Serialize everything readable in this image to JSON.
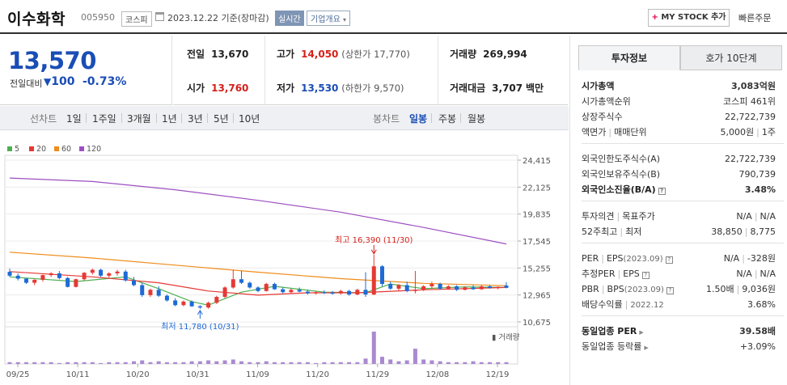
{
  "header": {
    "stock_name": "이수화학",
    "stock_code": "005950",
    "market": "코스피",
    "date_basis": "2023.12.22 기준(장마감)",
    "realtime_label": "실시간",
    "company_info_label": "기업개요",
    "mystock_label": "MY STOCK 추가",
    "quick_order_label": "빠른주문"
  },
  "price": {
    "current": "13,570",
    "diff_label": "전일대비",
    "diff_value": "100",
    "diff_pct": "-0.73%",
    "color": "#1a4db5"
  },
  "info": {
    "prev_label": "전일",
    "prev_value": "13,670",
    "high_label": "고가",
    "high_value": "14,050",
    "upper_limit": "(상한가 17,770)",
    "volume_label": "거래량",
    "volume_value": "269,994",
    "open_label": "시가",
    "open_value": "13,760",
    "low_label": "저가",
    "low_value": "13,530",
    "lower_limit": "(하한가 9,570)",
    "amount_label": "거래대금",
    "amount_value": "3,707",
    "amount_unit": "백만"
  },
  "toolbar": {
    "line_chart": "선차트",
    "periods": [
      "1일",
      "1주일",
      "3개월",
      "1년",
      "3년",
      "5년",
      "10년"
    ],
    "candle_chart": "봉차트",
    "candle_periods": [
      "일봉",
      "주봉",
      "월봉"
    ],
    "selected": "일봉"
  },
  "chart_data": {
    "type": "candlestick",
    "legend": [
      "5",
      "20",
      "60",
      "120"
    ],
    "legend_colors": [
      "#4caf50",
      "#e53935",
      "#ef8c1c",
      "#9c4fc0"
    ],
    "y_ticks": [
      "24,415",
      "22,125",
      "19,835",
      "17,545",
      "15,255",
      "12,965",
      "10,675"
    ],
    "x_ticks": [
      "09/25",
      "10/11",
      "10/20",
      "10/31",
      "11/09",
      "11/20",
      "11/29",
      "12/08",
      "12/19"
    ],
    "ylim": [
      10675,
      24415
    ],
    "max_annotation": "최고 16,390 (11/30)",
    "min_annotation": "최저 11,780 (10/31)",
    "volume_label": "거래량",
    "candles": [
      [
        14930,
        15200,
        14500,
        14600
      ],
      [
        14600,
        14800,
        14200,
        14350
      ],
      [
        14350,
        14400,
        13900,
        14000
      ],
      [
        14000,
        14300,
        13800,
        14250
      ],
      [
        14250,
        14700,
        14100,
        14650
      ],
      [
        14650,
        14900,
        14500,
        14800
      ],
      [
        14800,
        15000,
        14300,
        14400
      ],
      [
        14400,
        14500,
        13600,
        13650
      ],
      [
        13650,
        14350,
        13600,
        14300
      ],
      [
        14300,
        14900,
        14200,
        14850
      ],
      [
        14850,
        15200,
        14700,
        15100
      ],
      [
        15100,
        15200,
        14500,
        14600
      ],
      [
        14600,
        14900,
        14400,
        14800
      ],
      [
        14800,
        15100,
        14600,
        14950
      ],
      [
        14950,
        15100,
        14100,
        14200
      ],
      [
        14200,
        14500,
        13700,
        13800
      ],
      [
        13800,
        14000,
        12800,
        12950
      ],
      [
        12950,
        13500,
        12800,
        13400
      ],
      [
        13400,
        13700,
        12800,
        12900
      ],
      [
        12900,
        13000,
        12400,
        12500
      ],
      [
        12500,
        12700,
        12000,
        12100
      ],
      [
        12100,
        12500,
        12000,
        12400
      ],
      [
        12400,
        12500,
        11950,
        12000
      ],
      [
        12000,
        12100,
        11780,
        11900
      ],
      [
        11900,
        12400,
        11800,
        12300
      ],
      [
        12300,
        12900,
        12200,
        12800
      ],
      [
        12800,
        13700,
        12700,
        13600
      ],
      [
        13600,
        15100,
        13500,
        14300
      ],
      [
        14300,
        15000,
        13900,
        14000
      ],
      [
        14000,
        14100,
        13500,
        13600
      ],
      [
        13600,
        13700,
        13200,
        13300
      ],
      [
        13300,
        14000,
        13250,
        13900
      ],
      [
        13900,
        14000,
        13400,
        13450
      ],
      [
        13450,
        13600,
        13100,
        13200
      ],
      [
        13200,
        13500,
        13100,
        13400
      ],
      [
        13400,
        13600,
        13200,
        13250
      ],
      [
        13250,
        13400,
        13000,
        13100
      ],
      [
        13100,
        13300,
        13000,
        13200
      ],
      [
        13200,
        13350,
        13050,
        13150
      ],
      [
        13150,
        13300,
        13000,
        13100
      ],
      [
        13100,
        13400,
        13000,
        13300
      ],
      [
        13300,
        13400,
        12900,
        13000
      ],
      [
        13000,
        13500,
        12950,
        13400
      ],
      [
        13400,
        14900,
        12800,
        13000
      ],
      [
        13000,
        16390,
        12950,
        15400
      ],
      [
        15400,
        15500,
        13700,
        13900
      ],
      [
        13900,
        14100,
        13400,
        13500
      ],
      [
        13500,
        13900,
        13300,
        13800
      ],
      [
        13800,
        14100,
        13200,
        13300
      ],
      [
        13300,
        15000,
        13100,
        13400
      ],
      [
        13400,
        13800,
        13300,
        13700
      ],
      [
        13700,
        14100,
        13500,
        13900
      ],
      [
        13900,
        14000,
        13400,
        13500
      ],
      [
        13500,
        13800,
        13400,
        13700
      ],
      [
        13700,
        13800,
        13300,
        13400
      ],
      [
        13400,
        13700,
        13350,
        13600
      ],
      [
        13600,
        13800,
        13400,
        13450
      ],
      [
        13450,
        13800,
        13400,
        13700
      ],
      [
        13700,
        13800,
        13500,
        13550
      ],
      [
        13550,
        13700,
        13450,
        13650
      ],
      [
        13760,
        14050,
        13530,
        13570
      ]
    ],
    "volumes": [
      2,
      2,
      2,
      2,
      2,
      2,
      1,
      2,
      2,
      2,
      2,
      1,
      2,
      2,
      2,
      3,
      4,
      2,
      3,
      2,
      2,
      2,
      3,
      3,
      4,
      3,
      4,
      5,
      3,
      2,
      2,
      3,
      2,
      2,
      2,
      2,
      2,
      1,
      2,
      2,
      2,
      2,
      2,
      6,
      36,
      8,
      5,
      3,
      4,
      17,
      5,
      4,
      3,
      2,
      2,
      2,
      3,
      2,
      2,
      2,
      2
    ],
    "ma": {
      "ma5": [
        [
          0,
          14500
        ],
        [
          8,
          14100
        ],
        [
          14,
          14500
        ],
        [
          18,
          13500
        ],
        [
          22,
          12400
        ],
        [
          24,
          12100
        ],
        [
          28,
          13200
        ],
        [
          32,
          13700
        ],
        [
          38,
          13200
        ],
        [
          43,
          13150
        ],
        [
          46,
          13900
        ],
        [
          50,
          13500
        ],
        [
          55,
          13650
        ],
        [
          60,
          13600
        ]
      ],
      "ma20": [
        [
          0,
          14950
        ],
        [
          10,
          14500
        ],
        [
          18,
          14000
        ],
        [
          24,
          13300
        ],
        [
          30,
          12950
        ],
        [
          36,
          13150
        ],
        [
          42,
          13150
        ],
        [
          50,
          13400
        ],
        [
          60,
          13600
        ]
      ],
      "ma60": [
        [
          0,
          16600
        ],
        [
          10,
          16100
        ],
        [
          20,
          15500
        ],
        [
          30,
          14900
        ],
        [
          40,
          14350
        ],
        [
          50,
          13950
        ],
        [
          60,
          13750
        ]
      ],
      "ma120": [
        [
          0,
          22900
        ],
        [
          10,
          22600
        ],
        [
          20,
          21900
        ],
        [
          30,
          21000
        ],
        [
          40,
          20000
        ],
        [
          50,
          18700
        ],
        [
          60,
          17300
        ]
      ]
    }
  },
  "side": {
    "tab_invest": "투자정보",
    "tab_quote": "호가 10단계",
    "s1": [
      {
        "label": "시가총액",
        "value": "3,083억원"
      },
      {
        "label": "시가총액순위",
        "value": "코스피 461위"
      },
      {
        "label": "상장주식수",
        "value": "22,722,739"
      },
      {
        "label": "액면가",
        "label2": "매매단위",
        "value": "5,000원",
        "value2": "1주"
      }
    ],
    "s2": [
      {
        "label": "외국인한도주식수(A)",
        "value": "22,722,739"
      },
      {
        "label": "외국인보유주식수(B)",
        "value": "790,739"
      },
      {
        "label": "외국인소진율(B/A)",
        "value": "3.48%"
      }
    ],
    "s3": [
      {
        "label": "투자의견",
        "label2": "목표주가",
        "value": "N/A",
        "value2": "N/A"
      },
      {
        "label": "52주최고",
        "label2": "최저",
        "value": "38,850",
        "value2": "8,775"
      }
    ],
    "s4": [
      {
        "label": "PER",
        "label2": "EPS",
        "sub": "(2023.09)",
        "value": "N/A",
        "value2": "-328원"
      },
      {
        "label": "추정PER",
        "label2": "EPS",
        "value": "N/A",
        "value2": "N/A"
      },
      {
        "label": "PBR",
        "label2": "BPS",
        "sub": "(2023.09)",
        "value": "1.50배",
        "value2": "9,036원"
      },
      {
        "label": "배당수익률",
        "sub": "2022.12",
        "value": "3.68%"
      }
    ],
    "s5": [
      {
        "label": "동일업종 PER",
        "value": "39.58배"
      },
      {
        "label": "동일업종 등락률",
        "value": "+3.09%"
      }
    ]
  }
}
